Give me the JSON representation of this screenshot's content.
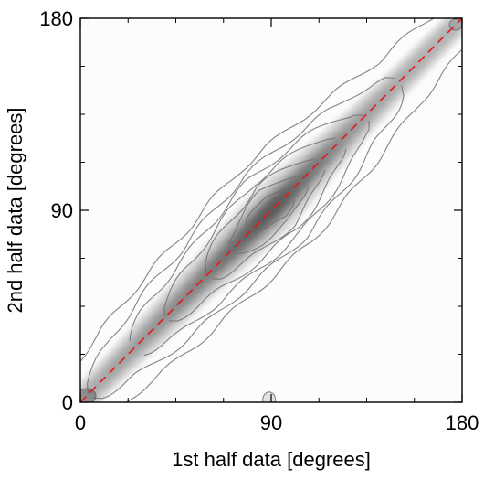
{
  "chart_data": {
    "type": "heatmap",
    "title": "",
    "xlabel": "1st half data [degrees]",
    "ylabel": "2nd half data [degrees]",
    "xlim": [
      0,
      180
    ],
    "ylim": [
      0,
      180
    ],
    "x_ticks": [
      {
        "value": 0,
        "label": "0"
      },
      {
        "value": 90,
        "label": "90"
      },
      {
        "value": 180,
        "label": "180"
      }
    ],
    "y_ticks": [
      {
        "value": 0,
        "label": "0"
      },
      {
        "value": 90,
        "label": "90"
      },
      {
        "value": 180,
        "label": "180"
      }
    ],
    "minor_ticks": [
      22.5,
      45,
      67.5,
      112.5,
      135,
      157.5
    ],
    "grid": false,
    "colormap": "gray (white = low density, black = high density)",
    "contour_lines": true,
    "density_ridge": {
      "description": "2D density concentrated along the diagonal y = x; peak near (92, 92), falling off toward both ends",
      "profile": [
        {
          "x": 0,
          "y": 0,
          "density": 0.28
        },
        {
          "x": 20,
          "y": 20,
          "density": 0.38
        },
        {
          "x": 40,
          "y": 40,
          "density": 0.55
        },
        {
          "x": 60,
          "y": 60,
          "density": 0.68
        },
        {
          "x": 80,
          "y": 80,
          "density": 0.9
        },
        {
          "x": 92,
          "y": 92,
          "density": 1.0
        },
        {
          "x": 110,
          "y": 110,
          "density": 0.72
        },
        {
          "x": 130,
          "y": 130,
          "density": 0.45
        },
        {
          "x": 150,
          "y": 150,
          "density": 0.3
        },
        {
          "x": 180,
          "y": 180,
          "density": 0.22
        }
      ]
    },
    "reference_line": {
      "style": "dashed",
      "color": "#e41a1c",
      "points": [
        [
          0,
          0
        ],
        [
          180,
          180
        ]
      ]
    }
  }
}
